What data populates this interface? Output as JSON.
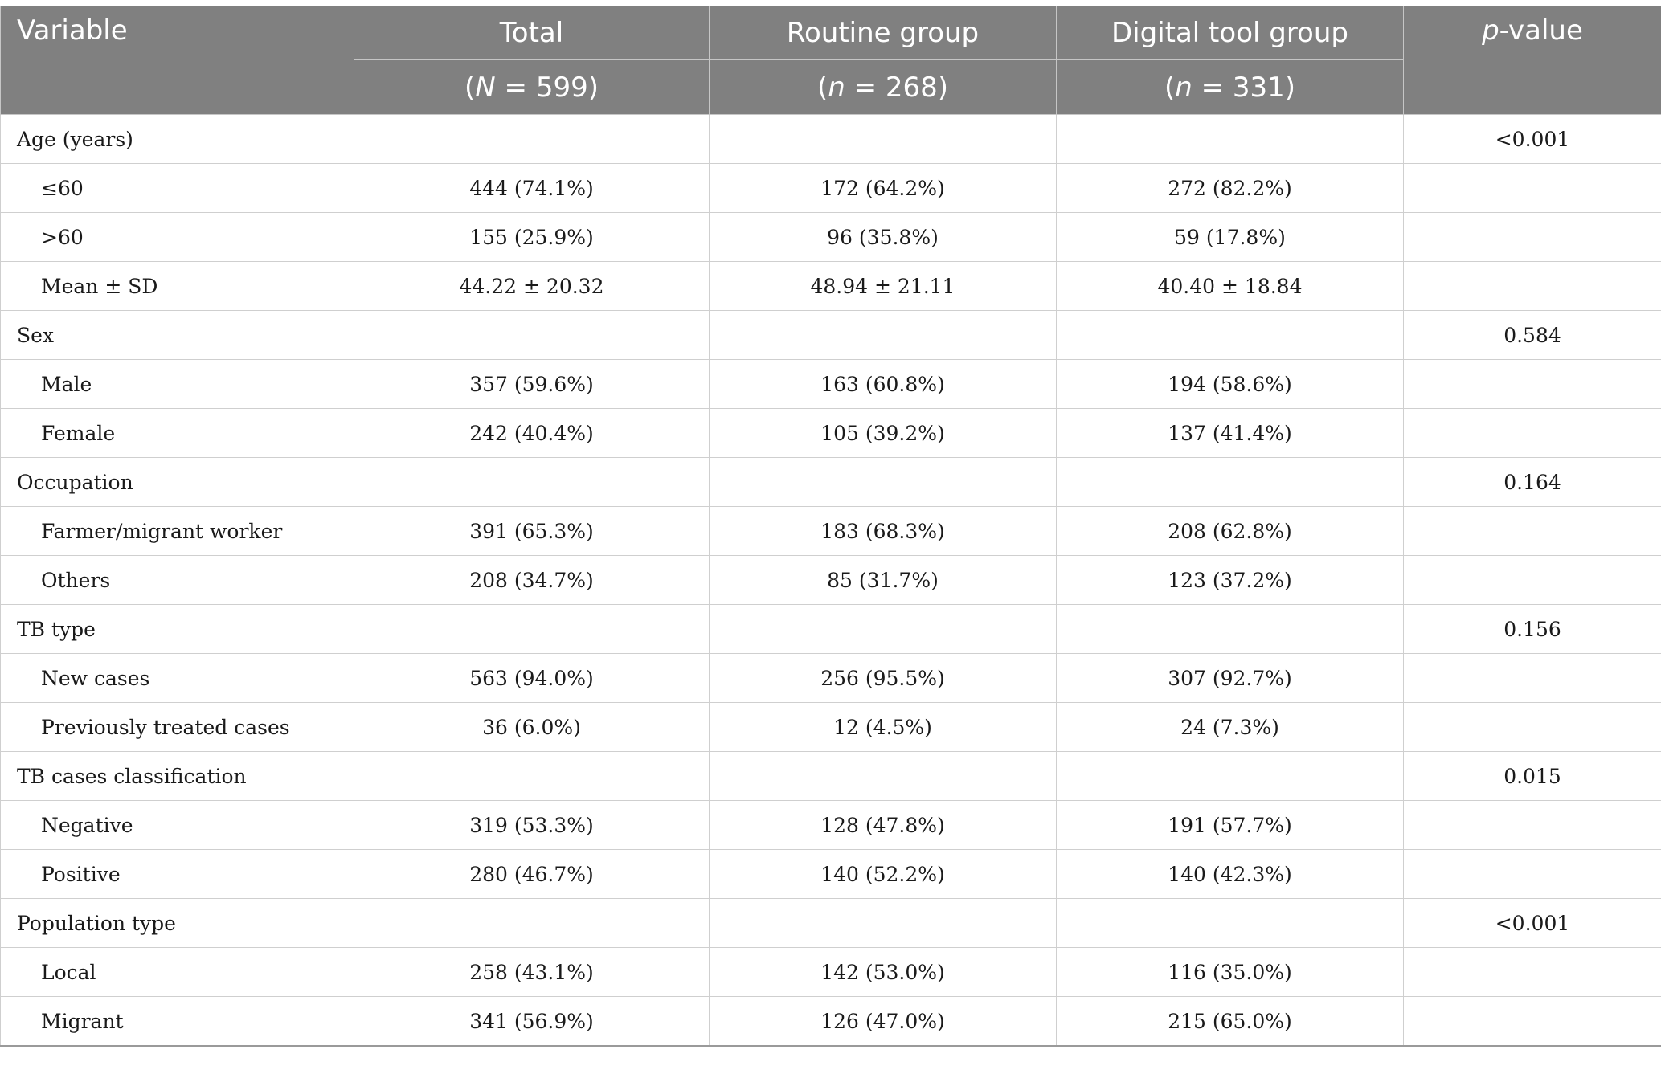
{
  "header": {
    "variable": "Variable",
    "total": "Total",
    "total_n": "(N = 599)",
    "routine": "Routine group",
    "routine_n": "(n = 268)",
    "digital": "Digital tool group",
    "digital_n": "(n = 331)",
    "pvalue": "p-value"
  },
  "rows": [
    {
      "label": "Age (years)",
      "sub": false,
      "total": "",
      "routine": "",
      "digital": "",
      "p": "<0.001"
    },
    {
      "label": "≤60",
      "sub": true,
      "total": "444 (74.1%)",
      "routine": "172 (64.2%)",
      "digital": "272 (82.2%)",
      "p": ""
    },
    {
      "label": ">60",
      "sub": true,
      "total": "155 (25.9%)",
      "routine": "96 (35.8%)",
      "digital": "59 (17.8%)",
      "p": ""
    },
    {
      "label": "Mean ± SD",
      "sub": true,
      "total": "44.22 ± 20.32",
      "routine": "48.94 ± 21.11",
      "digital": "40.40 ± 18.84",
      "p": ""
    },
    {
      "label": "Sex",
      "sub": false,
      "total": "",
      "routine": "",
      "digital": "",
      "p": "0.584"
    },
    {
      "label": "Male",
      "sub": true,
      "total": "357 (59.6%)",
      "routine": "163 (60.8%)",
      "digital": "194 (58.6%)",
      "p": ""
    },
    {
      "label": "Female",
      "sub": true,
      "total": "242 (40.4%)",
      "routine": "105 (39.2%)",
      "digital": "137 (41.4%)",
      "p": ""
    },
    {
      "label": "Occupation",
      "sub": false,
      "total": "",
      "routine": "",
      "digital": "",
      "p": "0.164"
    },
    {
      "label": "Farmer/migrant worker",
      "sub": true,
      "total": "391 (65.3%)",
      "routine": "183 (68.3%)",
      "digital": "208 (62.8%)",
      "p": ""
    },
    {
      "label": "Others",
      "sub": true,
      "total": "208 (34.7%)",
      "routine": "85 (31.7%)",
      "digital": "123 (37.2%)",
      "p": ""
    },
    {
      "label": "TB type",
      "sub": false,
      "total": "",
      "routine": "",
      "digital": "",
      "p": "0.156"
    },
    {
      "label": "New cases",
      "sub": true,
      "total": "563 (94.0%)",
      "routine": "256 (95.5%)",
      "digital": "307 (92.7%)",
      "p": ""
    },
    {
      "label": "Previously treated cases",
      "sub": true,
      "total": "36 (6.0%)",
      "routine": "12 (4.5%)",
      "digital": "24 (7.3%)",
      "p": ""
    },
    {
      "label": "TB cases classification",
      "sub": false,
      "total": "",
      "routine": "",
      "digital": "",
      "p": "0.015"
    },
    {
      "label": "Negative",
      "sub": true,
      "total": "319 (53.3%)",
      "routine": "128 (47.8%)",
      "digital": "191 (57.7%)",
      "p": ""
    },
    {
      "label": "Positive",
      "sub": true,
      "total": "280 (46.7%)",
      "routine": "140 (52.2%)",
      "digital": "140 (42.3%)",
      "p": ""
    },
    {
      "label": "Population type",
      "sub": false,
      "total": "",
      "routine": "",
      "digital": "",
      "p": "<0.001"
    },
    {
      "label": "Local",
      "sub": true,
      "total": "258 (43.1%)",
      "routine": "142 (53.0%)",
      "digital": "116 (35.0%)",
      "p": ""
    },
    {
      "label": "Migrant",
      "sub": true,
      "total": "341 (56.9%)",
      "routine": "126 (47.0%)",
      "digital": "215 (65.0%)",
      "p": ""
    }
  ]
}
